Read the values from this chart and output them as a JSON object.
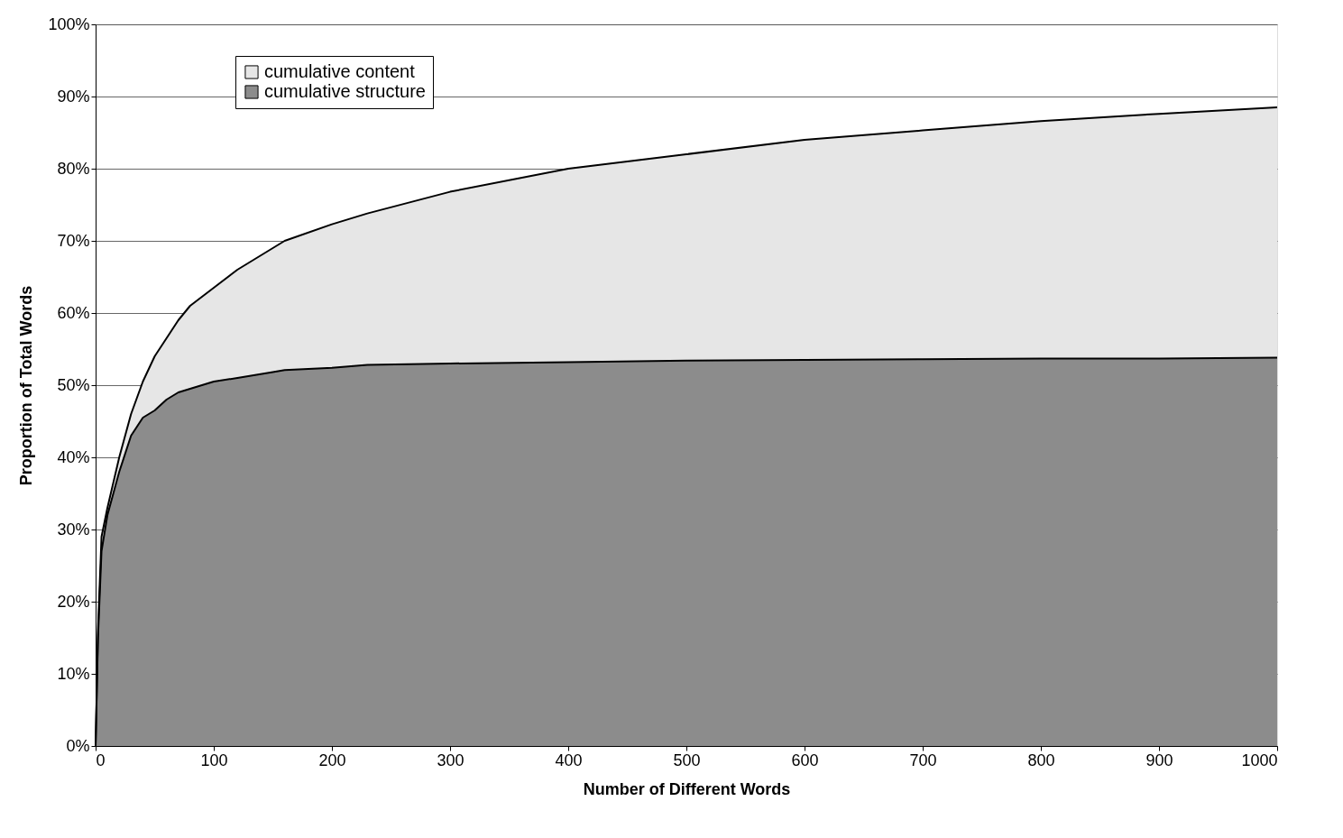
{
  "chart_data": {
    "type": "area",
    "stacked": true,
    "xlabel": "Number of Different Words",
    "ylabel": "Proportion of Total Words",
    "x": [
      0,
      2,
      5,
      10,
      20,
      30,
      40,
      50,
      60,
      70,
      80,
      100,
      120,
      150,
      160,
      200,
      230,
      300,
      400,
      500,
      600,
      700,
      800,
      900,
      1000
    ],
    "series": [
      {
        "name": "cumulative structure",
        "color": "#8c8c8c",
        "values": [
          0,
          15,
          27,
          32,
          38,
          43,
          45.5,
          46.5,
          48,
          49,
          49.5,
          50.5,
          51,
          51.8,
          52.1,
          52.4,
          52.8,
          53,
          53.2,
          53.4,
          53.5,
          53.6,
          53.7,
          53.7,
          53.8
        ]
      },
      {
        "name": "cumulative content",
        "color": "#e6e6e6",
        "values": [
          0,
          1,
          2,
          1,
          2,
          3,
          5,
          7.5,
          8.5,
          10,
          11.5,
          13,
          15,
          17.2,
          17.9,
          19.9,
          21,
          23.8,
          26.8,
          28.6,
          30.5,
          31.7,
          32.9,
          33.9,
          34.7
        ]
      }
    ],
    "xlim": [
      0,
      1000
    ],
    "xticks": [
      0,
      100,
      200,
      300,
      400,
      500,
      600,
      700,
      800,
      900,
      1000
    ],
    "ylim": [
      0,
      100
    ],
    "yticks": [
      {
        "value": 0,
        "label": "0%"
      },
      {
        "value": 10,
        "label": "10%"
      },
      {
        "value": 20,
        "label": "20%"
      },
      {
        "value": 30,
        "label": "30%"
      },
      {
        "value": 40,
        "label": "40%"
      },
      {
        "value": 50,
        "label": "50%"
      },
      {
        "value": 60,
        "label": "60%"
      },
      {
        "value": 70,
        "label": "70%"
      },
      {
        "value": 80,
        "label": "80%"
      },
      {
        "value": 90,
        "label": "90%"
      },
      {
        "value": 100,
        "label": "100%"
      }
    ],
    "grid": "y",
    "legend": "top left"
  }
}
